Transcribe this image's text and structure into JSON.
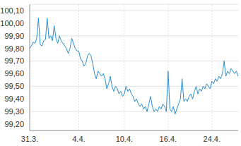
{
  "chart_data": {
    "type": "line",
    "color": "#2a8fcf",
    "grid": true,
    "line_style": "solid",
    "marker": "none",
    "categories": [
      "31.3.",
      null,
      null,
      null,
      null,
      null,
      null,
      null,
      null,
      null,
      null,
      null,
      null,
      null,
      null,
      null,
      null,
      null,
      null,
      null,
      null,
      null,
      null,
      null,
      null,
      null,
      null,
      null,
      "4.4.",
      null,
      null,
      null,
      null,
      null,
      null,
      null,
      null,
      null,
      null,
      null,
      null,
      null,
      null,
      null,
      null,
      null,
      null,
      null,
      null,
      null,
      null,
      null,
      null,
      null,
      "10.4.",
      null,
      null,
      null,
      null,
      null,
      null,
      null,
      null,
      null,
      null,
      null,
      null,
      null,
      null,
      null,
      null,
      null,
      null,
      null,
      null,
      null,
      null,
      null,
      null,
      "16.4.",
      null,
      null,
      null,
      null,
      null,
      null,
      null,
      null,
      null,
      null,
      null,
      null,
      null,
      null,
      null,
      null,
      null,
      null,
      null,
      null,
      null,
      null,
      null,
      null,
      "24.4.",
      null,
      null,
      null,
      null,
      null,
      null,
      null,
      null,
      null,
      null,
      null,
      null,
      null,
      null,
      null
    ],
    "values": [
      99.8,
      99.82,
      99.85,
      99.84,
      99.88,
      100.04,
      99.83,
      99.82,
      99.86,
      99.87,
      100.04,
      99.88,
      99.9,
      99.86,
      99.98,
      99.88,
      99.84,
      99.9,
      99.86,
      99.84,
      99.82,
      99.8,
      99.76,
      99.8,
      99.88,
      99.84,
      99.8,
      99.78,
      99.78,
      99.72,
      99.7,
      99.66,
      99.68,
      99.74,
      99.76,
      99.74,
      99.68,
      99.6,
      99.56,
      99.62,
      99.6,
      99.58,
      99.6,
      99.56,
      99.48,
      99.52,
      99.58,
      99.5,
      99.46,
      99.5,
      99.48,
      99.44,
      99.46,
      99.42,
      99.44,
      99.5,
      99.46,
      99.48,
      99.44,
      99.42,
      99.38,
      99.4,
      99.36,
      99.34,
      99.36,
      99.32,
      99.34,
      99.3,
      99.36,
      99.42,
      99.34,
      99.3,
      99.32,
      99.3,
      99.34,
      99.32,
      99.36,
      99.34,
      99.3,
      99.62,
      99.32,
      99.3,
      99.34,
      99.28,
      99.32,
      99.36,
      99.4,
      99.56,
      99.38,
      99.4,
      99.38,
      99.42,
      99.44,
      99.4,
      99.46,
      99.5,
      99.44,
      99.48,
      99.46,
      99.5,
      99.48,
      99.52,
      99.5,
      99.48,
      99.54,
      99.52,
      99.56,
      99.54,
      99.58,
      99.56,
      99.6,
      99.7,
      99.58,
      99.62,
      99.6,
      99.64,
      99.62,
      99.6,
      99.62,
      99.58
    ],
    "ylim": [
      99.15,
      100.15
    ],
    "yticks": [
      {
        "value": 99.2,
        "label": "99,20"
      },
      {
        "value": 99.3,
        "label": "99,30"
      },
      {
        "value": 99.4,
        "label": "99,40"
      },
      {
        "value": 99.5,
        "label": "99,50"
      },
      {
        "value": 99.6,
        "label": "99,60"
      },
      {
        "value": 99.7,
        "label": "99,70"
      },
      {
        "value": 99.8,
        "label": "99,80"
      },
      {
        "value": 99.9,
        "label": "99,90"
      },
      {
        "value": 100.0,
        "label": "100,00"
      },
      {
        "value": 100.1,
        "label": "100,10"
      }
    ]
  }
}
